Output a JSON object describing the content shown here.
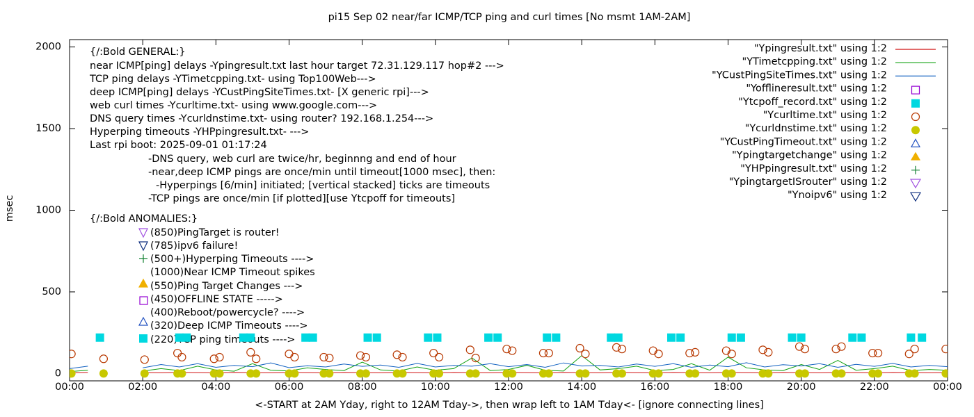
{
  "chart_data": {
    "type": "line",
    "title": "pi15 Sep 02  near/far ICMP/TCP ping and curl times [No msmt 1AM-2AM]",
    "xlabel": "<-START at 2AM Yday, right to 12AM Tday->, then wrap left to 1AM Tday<- [ignore connecting lines]",
    "ylabel": "msec",
    "xlim": [
      0,
      24
    ],
    "ylim": [
      -45,
      2045
    ],
    "xticks": [
      {
        "value": 0,
        "label": "00:00"
      },
      {
        "value": 2,
        "label": "02:00"
      },
      {
        "value": 4,
        "label": "04:00"
      },
      {
        "value": 6,
        "label": "06:00"
      },
      {
        "value": 8,
        "label": "08:00"
      },
      {
        "value": 10,
        "label": "10:00"
      },
      {
        "value": 12,
        "label": "12:00"
      },
      {
        "value": 14,
        "label": "14:00"
      },
      {
        "value": 16,
        "label": "16:00"
      },
      {
        "value": 18,
        "label": "18:00"
      },
      {
        "value": 20,
        "label": "20:00"
      },
      {
        "value": 22,
        "label": "22:00"
      },
      {
        "value": 24,
        "label": "00:00"
      }
    ],
    "yticks": [
      0,
      500,
      1000,
      1500,
      2000
    ],
    "legend": "top-right",
    "annotations": [
      "{/:Bold GENERAL:}",
      "near ICMP[ping] delays -Ypingresult.txt last hour target 72.31.129.117 hop#2 --->",
      "TCP ping delays -YTimetcpping.txt- using Top100Web--->",
      "deep ICMP[ping] delays -YCustPingSiteTimes.txt- [X generic rpi]--->",
      "web curl times -Ycurltime.txt- using www.google.com--->",
      "DNS query times -Ycurldnstime.txt- using router? 192.168.1.254--->",
      "Hyperping timeouts -YHPpingresult.txt- --->",
      "Last rpi boot: 2025-09-01 01:17:24",
      "-DNS query, web curl are twice/hr, beginnng and end of hour",
      "-near,deep ICMP pings are once/min until timeout[1000 msec], then:",
      "-Hyperpings [6/min] initiated; [vertical stacked] ticks are timeouts",
      "-TCP pings are once/min [if plotted][use Ytcpoff for timeouts]",
      "{/:Bold ANOMALIES:}",
      "(850)PingTarget is router!",
      "(785)ipv6 failure!",
      "(500+)Hyperping Timeouts ---->",
      "(1000)Near ICMP Timeout spikes",
      "(550)Ping Target Changes --->",
      "(450)OFFLINE STATE ----->",
      "(400)Reboot/powercycle? ---->",
      "(320)Deep ICMP Timeouts ---->",
      "(220)TCP ping timeouts ---->"
    ],
    "x": [
      0,
      0.5,
      1,
      1.5,
      2,
      2.5,
      3,
      3.5,
      4,
      4.5,
      5,
      5.5,
      6,
      6.5,
      7,
      7.5,
      8,
      8.5,
      9,
      9.5,
      10,
      10.5,
      11,
      11.5,
      12,
      12.5,
      13,
      13.5,
      14,
      14.5,
      15,
      15.5,
      16,
      16.5,
      17,
      17.5,
      18,
      18.5,
      19,
      19.5,
      20,
      20.5,
      21,
      21.5,
      22,
      22.5,
      23,
      23.5,
      24
    ],
    "series": [
      {
        "name": "\"Ypingresult.txt\" using 1:2",
        "color": "#d01010",
        "marker": "line",
        "values": [
          4,
          6,
          null,
          null,
          5,
          4,
          6,
          5,
          4,
          6,
          5,
          4,
          6,
          5,
          4,
          6,
          5,
          4,
          6,
          5,
          4,
          6,
          5,
          4,
          6,
          5,
          4,
          6,
          5,
          4,
          6,
          5,
          4,
          6,
          5,
          4,
          6,
          5,
          4,
          6,
          5,
          4,
          6,
          5,
          4,
          6,
          5,
          4,
          5
        ]
      },
      {
        "name": "\"YTimetcpping.txt\" using 1:2",
        "color": "#10a010",
        "marker": "line",
        "values": [
          12,
          20,
          null,
          null,
          15,
          30,
          18,
          45,
          22,
          14,
          60,
          20,
          16,
          35,
          25,
          18,
          70,
          22,
          15,
          40,
          20,
          30,
          95,
          18,
          25,
          50,
          20,
          15,
          110,
          22,
          30,
          45,
          18,
          25,
          60,
          20,
          100,
          35,
          22,
          18,
          55,
          25,
          80,
          20,
          30,
          45,
          18,
          25,
          20
        ]
      },
      {
        "name": "\"YCustPingSiteTimes.txt\" using 1:2",
        "color": "#1060c0",
        "marker": "line",
        "values": [
          30,
          45,
          null,
          null,
          35,
          55,
          40,
          60,
          38,
          50,
          42,
          65,
          36,
          48,
          40,
          58,
          44,
          52,
          38,
          62,
          40,
          50,
          45,
          60,
          42,
          55,
          38,
          65,
          46,
          50,
          40,
          58,
          44,
          60,
          38,
          52,
          42,
          66,
          40,
          54,
          46,
          60,
          38,
          56,
          44,
          62,
          40,
          50,
          42
        ]
      },
      {
        "name": "\"Yofflineresult.txt\" using 1:2",
        "color": "#9400d3",
        "marker": "square-open",
        "x": [],
        "values": []
      },
      {
        "name": "\"Ytcpoff_record.txt\" using 1:2",
        "color": "#00d8e0",
        "marker": "square",
        "x": [
          0.83,
          3.0,
          3.2,
          4.75,
          4.95,
          6.45,
          6.65,
          8.15,
          8.4,
          9.8,
          10.05,
          11.45,
          11.7,
          13.05,
          13.3,
          14.8,
          15.0,
          16.45,
          16.7,
          18.1,
          18.35,
          19.75,
          20.0,
          21.4,
          21.65,
          23.0,
          23.3
        ],
        "values": [
          220,
          220,
          220,
          220,
          220,
          220,
          220,
          220,
          220,
          220,
          220,
          220,
          220,
          220,
          220,
          220,
          220,
          220,
          220,
          220,
          220,
          220,
          220,
          220,
          220,
          220,
          220
        ]
      },
      {
        "name": "\"Ycurltime.txt\" using 1:2",
        "color": "#b83800",
        "marker": "circle-open",
        "x": [
          0.05,
          0.93,
          2.05,
          2.95,
          3.07,
          3.95,
          4.1,
          4.95,
          5.1,
          6.0,
          6.15,
          6.95,
          7.1,
          7.95,
          8.1,
          8.95,
          9.1,
          9.95,
          10.1,
          10.95,
          11.1,
          11.95,
          12.1,
          12.95,
          13.1,
          13.95,
          14.1,
          14.95,
          15.1,
          15.95,
          16.1,
          16.95,
          17.1,
          17.95,
          18.1,
          18.95,
          19.1,
          19.95,
          20.1,
          20.95,
          21.1,
          21.95,
          22.1,
          22.95,
          23.1,
          23.95
        ],
        "values": [
          120,
          90,
          85,
          125,
          100,
          90,
          100,
          130,
          90,
          120,
          100,
          100,
          95,
          110,
          100,
          115,
          100,
          125,
          100,
          145,
          95,
          150,
          140,
          125,
          125,
          155,
          120,
          160,
          150,
          140,
          120,
          125,
          130,
          140,
          120,
          145,
          130,
          165,
          150,
          150,
          165,
          125,
          125,
          120,
          150,
          150
        ]
      },
      {
        "name": "\"Ycurldnstime.txt\" using 1:2",
        "color": "#c8c800",
        "marker": "circle",
        "x": [
          0.05,
          0.93,
          2.05,
          2.95,
          3.07,
          3.95,
          4.1,
          4.95,
          5.1,
          6.0,
          6.15,
          6.95,
          7.1,
          7.95,
          8.1,
          8.95,
          9.1,
          9.95,
          10.1,
          10.95,
          11.1,
          11.95,
          12.1,
          12.95,
          13.1,
          13.95,
          14.1,
          14.95,
          15.1,
          15.95,
          16.1,
          16.95,
          17.1,
          17.95,
          18.1,
          18.95,
          19.1,
          19.95,
          20.1,
          20.95,
          21.1,
          21.95,
          22.1,
          22.95,
          23.1,
          23.95
        ],
        "values": [
          0,
          0,
          0,
          0,
          0,
          0,
          0,
          0,
          0,
          0,
          0,
          0,
          0,
          0,
          0,
          0,
          0,
          0,
          0,
          0,
          0,
          0,
          0,
          0,
          0,
          0,
          0,
          0,
          0,
          0,
          0,
          0,
          0,
          0,
          0,
          0,
          0,
          0,
          0,
          0,
          0,
          0,
          0,
          0,
          0,
          0
        ]
      },
      {
        "name": "\"YCustPingTimeout.txt\" using 1:2",
        "color": "#2050c0",
        "marker": "triangle-open",
        "x": [],
        "values": []
      },
      {
        "name": "\"Ypingtargetchange\" using 1:2",
        "color": "#f0b000",
        "marker": "triangle",
        "x": [],
        "values": []
      },
      {
        "name": "\"YHPpingresult.txt\" using 1:2",
        "color": "#108030",
        "marker": "plus",
        "x": [],
        "values": []
      },
      {
        "name": "\"YpingtargetISrouter\" using 1:2",
        "color": "#a050e0",
        "marker": "triangle-down-open",
        "x": [],
        "values": []
      },
      {
        "name": "\"Ynoipv6\" using 1:2",
        "color": "#103080",
        "marker": "triangle-down-open",
        "x": [],
        "values": []
      }
    ]
  }
}
